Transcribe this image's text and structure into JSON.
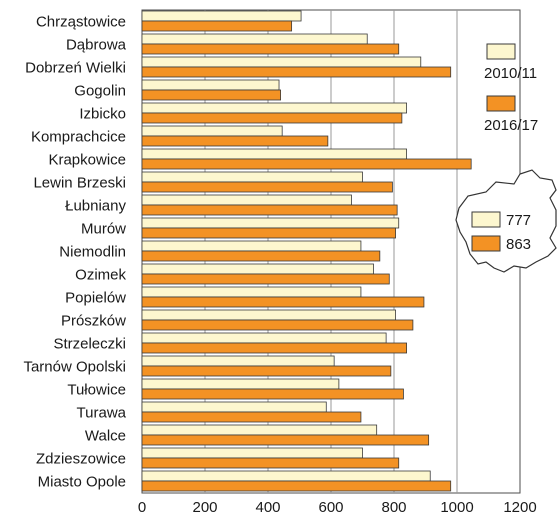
{
  "chart_data": {
    "type": "bar",
    "orientation": "horizontal",
    "categories": [
      "Chrząstowice",
      "Dąbrowa",
      "Dobrzeń Wielki",
      "Gogolin",
      "Izbicko",
      "Komprachcice",
      "Krapkowice",
      "Lewin Brzeski",
      "Łubniany",
      "Murów",
      "Niemodlin",
      "Ozimek",
      "Popielów",
      "Prószków",
      "Strzeleczki",
      "Tarnów Opolski",
      "Tułowice",
      "Turawa",
      "Walce",
      "Zdzieszowice",
      "Miasto Opole"
    ],
    "series": [
      {
        "name": "2010/11",
        "color": "#fdf7cf",
        "values": [
          505,
          715,
          885,
          435,
          840,
          445,
          840,
          700,
          665,
          815,
          695,
          735,
          695,
          805,
          775,
          610,
          625,
          585,
          745,
          700,
          915
        ]
      },
      {
        "name": "2016/17",
        "color": "#f39224",
        "values": [
          475,
          815,
          980,
          440,
          825,
          590,
          1045,
          795,
          810,
          805,
          755,
          785,
          895,
          860,
          840,
          790,
          830,
          695,
          910,
          815,
          980
        ]
      }
    ],
    "xlim": [
      0,
      1200
    ],
    "xticks": [
      0,
      200,
      400,
      600,
      800,
      1000,
      1200
    ],
    "grid": true,
    "legend": "right",
    "inset": {
      "values": [
        777,
        863
      ]
    }
  }
}
